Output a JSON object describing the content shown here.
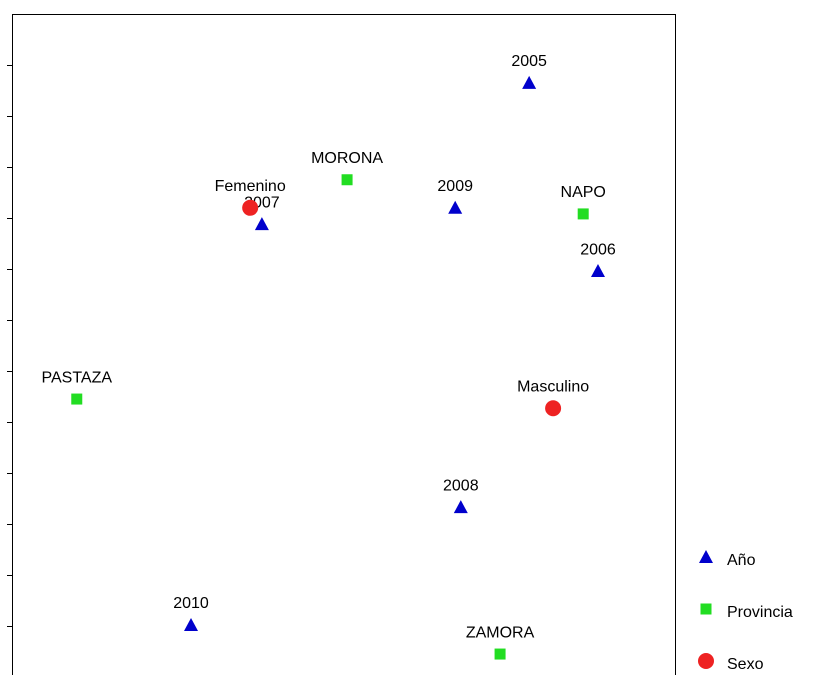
{
  "chart_data": {
    "type": "scatter",
    "xlim": [
      -6.5,
      6.5
    ],
    "ylim": [
      -7,
      6
    ],
    "yticks": [
      5,
      4,
      3,
      2,
      1,
      0,
      -1,
      -2,
      -3,
      -4,
      -5,
      -6
    ],
    "legend": "right",
    "series": [
      {
        "name": "Año",
        "color": "#0000cc",
        "marker": "triangle",
        "labels": [
          "2005",
          "2006",
          "2007",
          "2008",
          "2009",
          "2010"
        ],
        "x": [
          3.64,
          4.99,
          -1.6,
          2.3,
          2.19,
          -2.99
        ],
        "y": [
          4.65,
          0.96,
          1.88,
          -3.67,
          2.2,
          -5.98
        ]
      },
      {
        "name": "Provincia",
        "color": "#22dd22",
        "marker": "square",
        "labels": [
          "MORONA",
          "NAPO",
          "PASTAZA",
          "ZAMORA"
        ],
        "x": [
          0.07,
          4.7,
          -5.23,
          3.07
        ],
        "y": [
          2.75,
          2.08,
          -1.55,
          -6.55
        ]
      },
      {
        "name": "Sexo",
        "color": "#ee2222",
        "marker": "circle",
        "labels": [
          "Femenino",
          "Masculino"
        ],
        "x": [
          -1.83,
          4.11
        ],
        "y": [
          2.2,
          -1.73
        ]
      }
    ]
  }
}
